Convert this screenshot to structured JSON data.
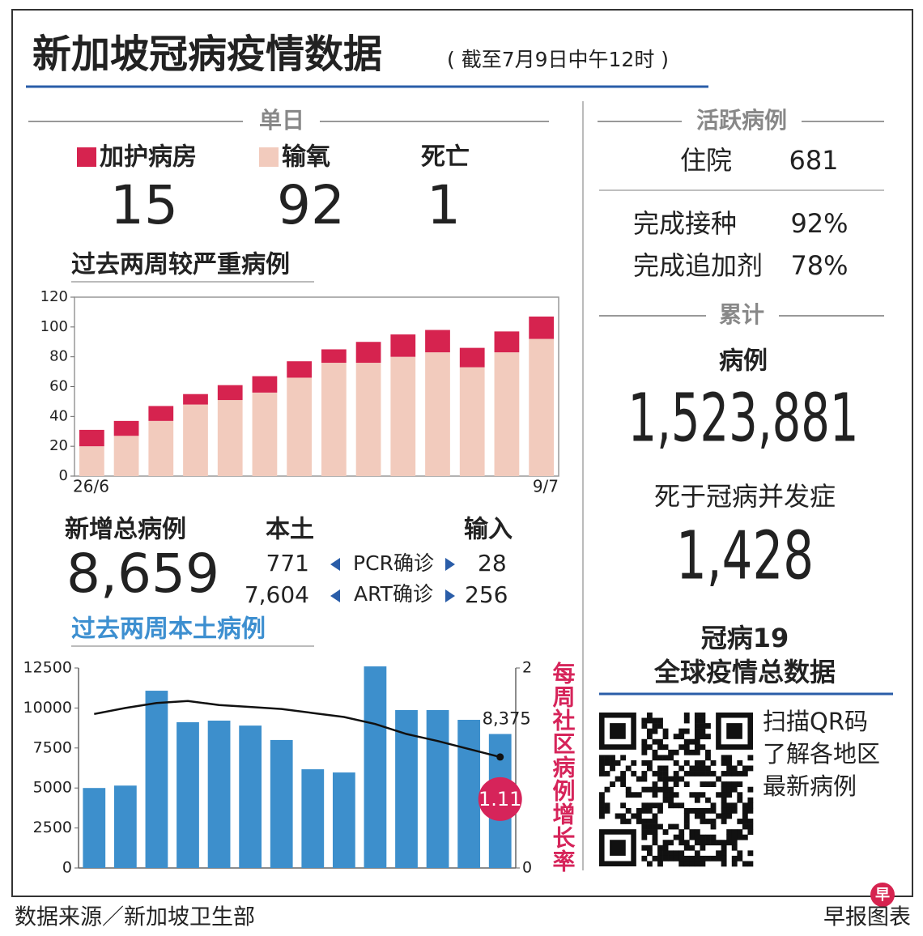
{
  "header": {
    "title": "新加坡冠病疫情数据",
    "subtitle": "( 截至7月9日中午12时 )"
  },
  "daily": {
    "heading": "单日",
    "icu": "15",
    "oxygen": "92",
    "death_label": "死亡",
    "death": "1"
  },
  "new_cases": {
    "label": "新增总病例",
    "total": "8,659",
    "local_label": "本土",
    "import_label": "输入",
    "rows": [
      [
        "771",
        "PCR确诊",
        "28"
      ],
      [
        "7,604",
        "ART确诊",
        "256"
      ]
    ]
  },
  "active": {
    "heading": "活跃病例",
    "hospital_label": "住院",
    "hospital": "681",
    "vaccinated_label": "完成接种",
    "vaccinated": "92%",
    "booster_label": "完成追加剂",
    "booster": "78%"
  },
  "cumulative": {
    "heading": "累计",
    "cases_label": "病例",
    "cases": "1,523,881",
    "deaths_label": "死于冠病并发症",
    "deaths": "1,428"
  },
  "global": {
    "title_line1": "冠病19",
    "title_line2": "全球疫情总数据",
    "qr_lines": [
      "扫描QR码",
      "了解各地区",
      "最新病例"
    ]
  },
  "footer": {
    "source": "数据来源／新加坡卫生部",
    "credit": "早报图表",
    "logo": "早"
  },
  "chart_data": [
    {
      "type": "bar",
      "stacked": true,
      "title": "过去两周较严重病例",
      "categories": [
        "26/6",
        null,
        null,
        null,
        null,
        null,
        null,
        null,
        null,
        null,
        null,
        null,
        null,
        "9/7"
      ],
      "series": [
        {
          "name": "加护病房",
          "color": "#d6234f",
          "values": [
            11,
            10,
            10,
            7,
            10,
            11,
            11,
            9,
            14,
            15,
            15,
            13,
            14,
            15
          ]
        },
        {
          "name": "输氧",
          "color": "#f2cbbd",
          "values": [
            20,
            27,
            37,
            48,
            51,
            56,
            66,
            76,
            76,
            80,
            83,
            73,
            83,
            92
          ]
        }
      ],
      "ylim": [
        0,
        120
      ],
      "yticks": [
        0,
        20,
        40,
        60,
        80,
        100,
        120
      ]
    },
    {
      "type": "bar",
      "title": "过去两周本土病例",
      "y2label": "每周社区病例增长率",
      "categories": [
        null,
        null,
        null,
        null,
        null,
        null,
        null,
        null,
        null,
        null,
        null,
        null,
        null,
        null
      ],
      "series": [
        {
          "color": "#3d8fcc",
          "values": [
            5000,
            5150,
            11080,
            9110,
            9210,
            8900,
            8000,
            6170,
            5970,
            12600,
            9870,
            9870,
            9260,
            8375
          ],
          "value_labels": [
            null,
            null,
            null,
            null,
            null,
            null,
            null,
            null,
            null,
            null,
            null,
            null,
            null,
            "8,375"
          ]
        },
        {
          "type": "line",
          "axis": "y2",
          "color": "#111111",
          "values": [
            1.54,
            1.6,
            1.65,
            1.67,
            1.63,
            1.61,
            1.59,
            1.55,
            1.51,
            1.44,
            1.34,
            1.27,
            1.19,
            1.11
          ],
          "value_labels": [
            null,
            null,
            null,
            null,
            null,
            null,
            null,
            null,
            null,
            null,
            null,
            null,
            null,
            "1.11"
          ]
        }
      ],
      "ylim": [
        0,
        12500
      ],
      "yticks": [
        0,
        2500,
        5000,
        7500,
        10000,
        12500
      ],
      "y2lim": [
        0,
        2
      ],
      "y2ticks": [
        0,
        2
      ]
    }
  ]
}
